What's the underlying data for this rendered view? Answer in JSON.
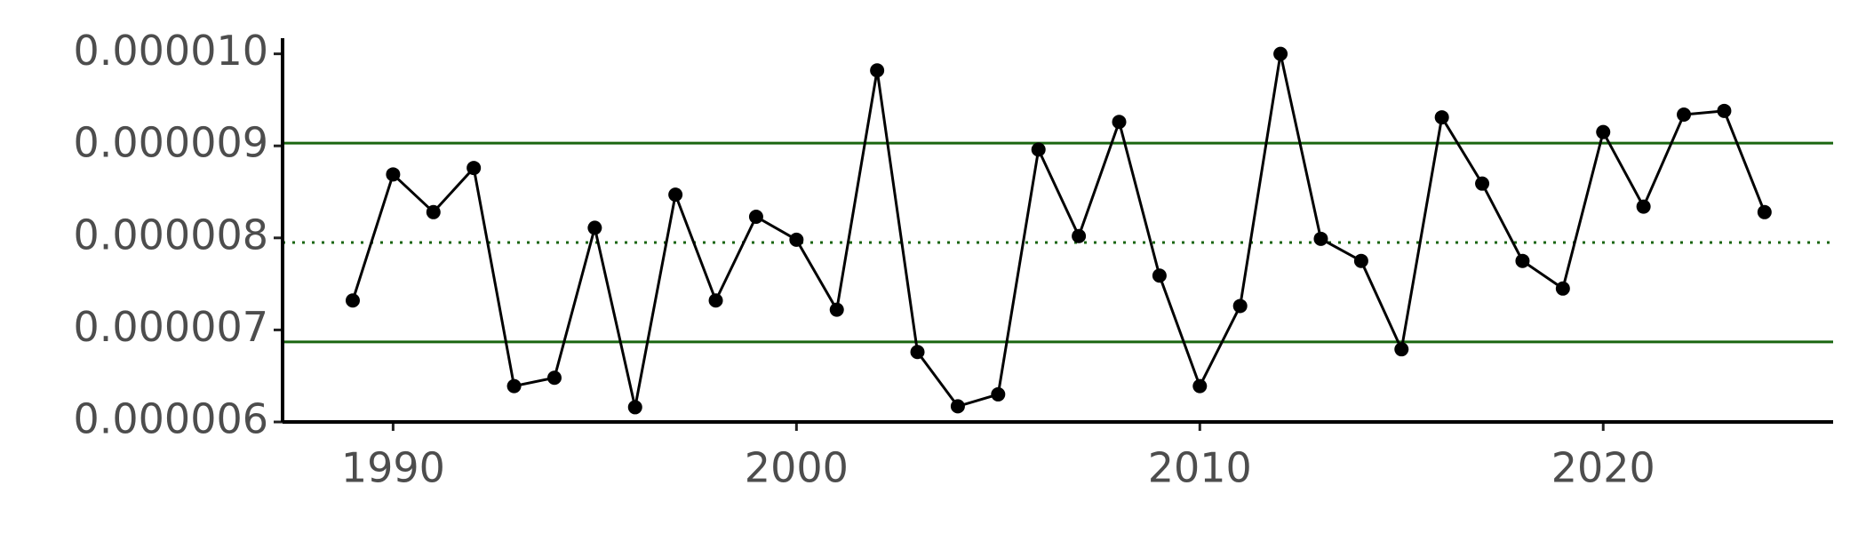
{
  "chart_data": {
    "type": "line",
    "x": [
      1989,
      1990,
      1991,
      1992,
      1993,
      1994,
      1995,
      1996,
      1997,
      1998,
      1999,
      2000,
      2001,
      2002,
      2003,
      2004,
      2005,
      2006,
      2007,
      2008,
      2009,
      2010,
      2011,
      2012,
      2013,
      2014,
      2015,
      2016,
      2017,
      2018,
      2019,
      2020,
      2021,
      2022,
      2023,
      2024
    ],
    "values": [
      7.32e-06,
      8.69e-06,
      8.28e-06,
      8.76e-06,
      6.39e-06,
      6.48e-06,
      8.11e-06,
      6.16e-06,
      8.47e-06,
      7.32e-06,
      8.23e-06,
      7.98e-06,
      7.22e-06,
      9.82e-06,
      6.76e-06,
      6.17e-06,
      6.3e-06,
      8.96e-06,
      8.02e-06,
      9.26e-06,
      7.59e-06,
      6.39e-06,
      7.26e-06,
      1e-05,
      7.99e-06,
      7.75e-06,
      6.79e-06,
      9.31e-06,
      8.59e-06,
      7.75e-06,
      7.45e-06,
      9.15e-06,
      8.34e-06,
      9.34e-06,
      9.38e-06,
      8.28e-06
    ],
    "color": "#000000",
    "markers": true,
    "reference_lines": [
      {
        "value": 9.03e-06,
        "style": "solid",
        "color": "#1a6610"
      },
      {
        "value": 7.95e-06,
        "style": "dotted",
        "color": "#1a6610"
      },
      {
        "value": 6.87e-06,
        "style": "solid",
        "color": "#1a6610"
      }
    ],
    "xlim": [
      1987.26,
      2025.7
    ],
    "xticks": [
      1990,
      2000,
      2010,
      2020
    ],
    "ylim": [
      6e-06,
      1.017e-05
    ],
    "yticks": [
      {
        "value": 6e-06,
        "label": "0.000006"
      },
      {
        "value": 7e-06,
        "label": "0.000007"
      },
      {
        "value": 8e-06,
        "label": "0.000008"
      },
      {
        "value": 9e-06,
        "label": "0.000009"
      },
      {
        "value": 1e-05,
        "label": "0.000010"
      }
    ]
  }
}
